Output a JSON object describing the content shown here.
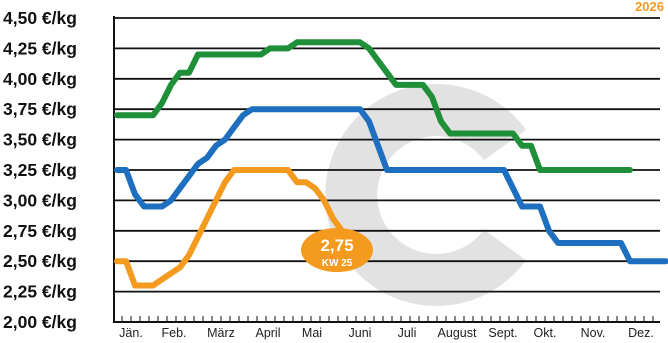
{
  "chart_data": {
    "type": "line",
    "year_label": "2026",
    "y_ticks": [
      "4,50 €/kg",
      "4,25 €/kg",
      "4,00 €/kg",
      "3,75 €/kg",
      "3,50 €/kg",
      "3,25 €/kg",
      "3,00 €/kg",
      "2,75 €/kg",
      "2,50 €/kg",
      "2,25 €/kg",
      "2,00 €/kg"
    ],
    "ylim": [
      2.0,
      4.5
    ],
    "grid": true,
    "x_weeks": 52,
    "months": [
      "Jän.",
      "Feb.",
      "März",
      "April",
      "Mai",
      "Juni",
      "Juli",
      "August",
      "Sept.",
      "Okt.",
      "Nov.",
      "Dez."
    ],
    "series": [
      {
        "color": "#1f8f3a",
        "values": [
          3.7,
          3.7,
          3.7,
          3.7,
          3.7,
          3.8,
          3.95,
          4.05,
          4.05,
          4.2,
          4.2,
          4.2,
          4.2,
          4.2,
          4.2,
          4.2,
          4.2,
          4.25,
          4.25,
          4.25,
          4.3,
          4.3,
          4.3,
          4.3,
          4.3,
          4.3,
          4.3,
          4.3,
          4.25,
          4.15,
          4.05,
          3.95,
          3.95,
          3.95,
          3.95,
          3.85,
          3.65,
          3.55,
          3.55,
          3.55,
          3.55,
          3.55,
          3.55,
          3.55,
          3.55,
          3.45,
          3.45,
          3.25,
          3.25,
          3.25,
          3.25,
          3.25,
          3.25,
          3.25,
          3.25,
          3.25,
          3.25,
          3.25
        ]
      },
      {
        "color": "#1f6fc0",
        "values": [
          3.25,
          3.25,
          3.05,
          2.95,
          2.95,
          2.95,
          3.0,
          3.1,
          3.2,
          3.3,
          3.35,
          3.45,
          3.5,
          3.6,
          3.7,
          3.75,
          3.75,
          3.75,
          3.75,
          3.75,
          3.75,
          3.75,
          3.75,
          3.75,
          3.75,
          3.75,
          3.75,
          3.75,
          3.65,
          3.45,
          3.25,
          3.25,
          3.25,
          3.25,
          3.25,
          3.25,
          3.25,
          3.25,
          3.25,
          3.25,
          3.25,
          3.25,
          3.25,
          3.25,
          3.1,
          2.95,
          2.95,
          2.95,
          2.75,
          2.65,
          2.65,
          2.65,
          2.65,
          2.65,
          2.65,
          2.65,
          2.65,
          2.5,
          2.5,
          2.5,
          2.5,
          2.5
        ]
      },
      {
        "color": "#f39a1f",
        "values": [
          2.5,
          2.5,
          2.3,
          2.3,
          2.3,
          2.35,
          2.4,
          2.45,
          2.55,
          2.7,
          2.85,
          3.0,
          3.15,
          3.25,
          3.25,
          3.25,
          3.25,
          3.25,
          3.25,
          3.25,
          3.15,
          3.15,
          3.1,
          3.0,
          2.85,
          2.75
        ]
      }
    ],
    "annotation": {
      "value": "2,75",
      "sub": "KW 25"
    }
  }
}
